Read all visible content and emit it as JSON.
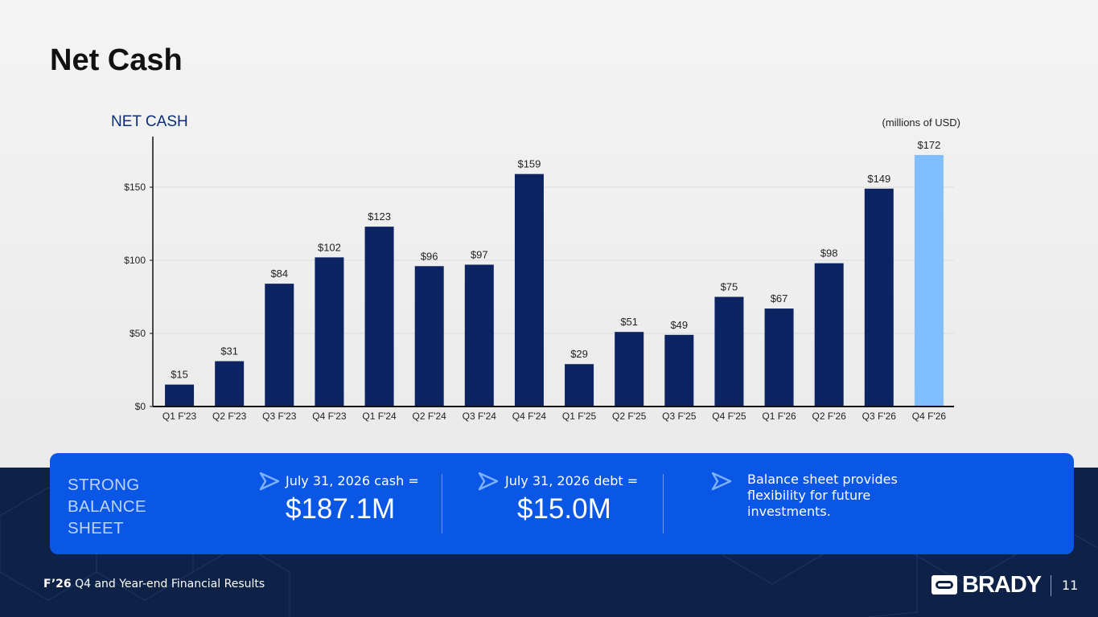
{
  "slide": {
    "title": "Net Cash",
    "page_number": "11",
    "footer_bold": "F’26",
    "footer_text": " Q4 and Year-end Financial Results",
    "brand": "BRADY",
    "colors": {
      "bar": "#0c2461",
      "highlight_bar": "#7fbfff",
      "panel": "#0a57e6",
      "band": "#0d2246"
    }
  },
  "chart_data": {
    "type": "bar",
    "title": "NET CASH",
    "unit_note": "(millions of USD)",
    "categories": [
      "Q1 F'23",
      "Q2 F'23",
      "Q3 F'23",
      "Q4 F'23",
      "Q1 F'24",
      "Q2 F'24",
      "Q3 F'24",
      "Q4 F'24",
      "Q1 F'25",
      "Q2 F'25",
      "Q3 F'25",
      "Q4 F'25",
      "Q1 F'26",
      "Q2 F'26",
      "Q3 F'26",
      "Q4 F'26"
    ],
    "values": [
      15,
      31,
      84,
      102,
      123,
      96,
      97,
      159,
      29,
      51,
      49,
      75,
      67,
      98,
      149,
      172
    ],
    "data_labels": [
      "$15",
      "$31",
      "$84",
      "$102",
      "$123",
      "$96",
      "$97",
      "$159",
      "$29",
      "$51",
      "$49",
      "$75",
      "$67",
      "$98",
      "$149",
      "$172"
    ],
    "highlight_index": 15,
    "yticks": [
      0,
      50,
      100,
      150
    ],
    "ytick_labels": [
      "$0",
      "$50",
      "$100",
      "$150"
    ],
    "ylim": [
      0,
      185
    ],
    "grid": true,
    "legend": "none"
  },
  "panel": {
    "heading": "STRONG BALANCE SHEET",
    "cash_label": "July 31, 2026 cash =",
    "cash_value": "$187.1M",
    "debt_label": "July 31, 2026 debt =",
    "debt_value": "$15.0M",
    "note": "Balance sheet provides flexibility for future investments."
  }
}
